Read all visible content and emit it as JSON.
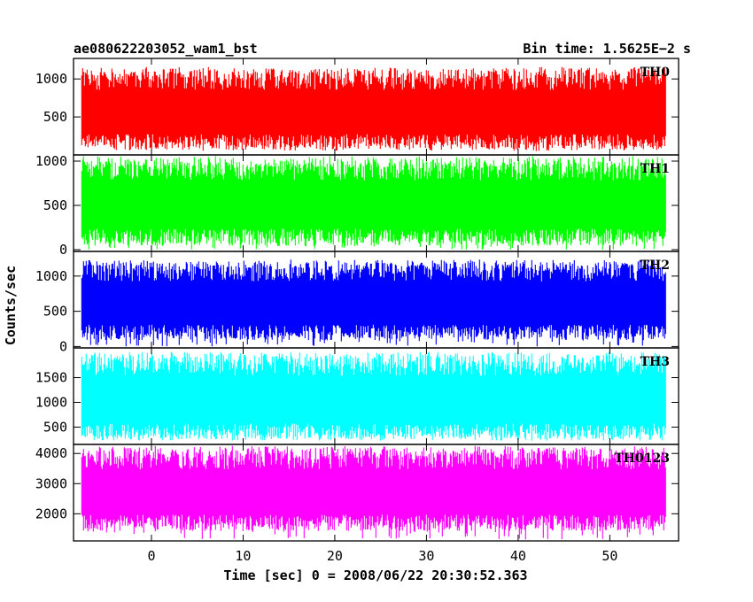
{
  "chart_data": {
    "type": "line",
    "title_left": "ae080622203052_wam1_bst",
    "title_right": "Bin time: 1.5625E−2 s",
    "xlabel": "Time [sec] 0 = 2008/06/22 20:30:52.363",
    "ylabel": "Counts/sec",
    "xlim": [
      -8.5,
      57.5
    ],
    "data_x_range": [
      -7.6,
      56.1
    ],
    "x_ticks": [
      0,
      10,
      20,
      30,
      40,
      50
    ],
    "grid": false,
    "panels": [
      {
        "name": "TH0",
        "color": "#ff0000",
        "ylim": [
          0,
          1270
        ],
        "y_ticks": [
          500,
          1000
        ],
        "y_tick_labels": [
          "500",
          "1000"
        ],
        "low": 170,
        "high": 1000,
        "min_spike": 50,
        "max_spike": 1160
      },
      {
        "name": "TH1",
        "color": "#00ff00",
        "ylim": [
          -20,
          1070
        ],
        "y_ticks": [
          0,
          500,
          1000
        ],
        "y_tick_labels": [
          "0",
          "500",
          "1000"
        ],
        "low": 140,
        "high": 920,
        "min_spike": 0,
        "max_spike": 1000
      },
      {
        "name": "TH2",
        "color": "#0000ff",
        "ylim": [
          -20,
          1350
        ],
        "y_ticks": [
          0,
          500,
          1000
        ],
        "y_tick_labels": [
          "0",
          "500",
          "1000"
        ],
        "low": 200,
        "high": 1080,
        "min_spike": 0,
        "max_spike": 1200
      },
      {
        "name": "TH3",
        "color": "#00ffff",
        "ylim": [
          150,
          2100
        ],
        "y_ticks": [
          500,
          1000,
          1500
        ],
        "y_tick_labels": [
          "500",
          "1000",
          "1500"
        ],
        "low": 400,
        "high": 1780,
        "min_spike": 250,
        "max_spike": 2000
      },
      {
        "name": "TH0123",
        "color": "#ff00ff",
        "ylim": [
          1100,
          4300
        ],
        "y_ticks": [
          2000,
          3000,
          4000
        ],
        "y_tick_labels": [
          "2000",
          "3000",
          "4000"
        ],
        "low": 1700,
        "high": 3850,
        "min_spike": 1150,
        "max_spike": 4250
      }
    ]
  }
}
